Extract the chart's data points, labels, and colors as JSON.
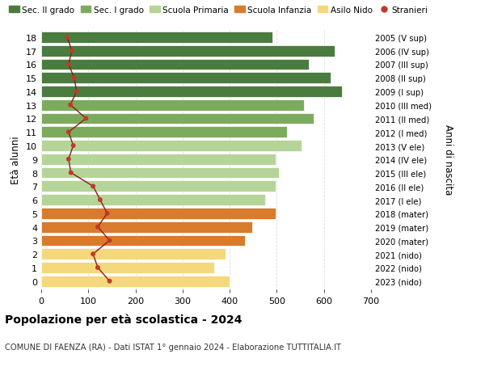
{
  "ages": [
    18,
    17,
    16,
    15,
    14,
    13,
    12,
    11,
    10,
    9,
    8,
    7,
    6,
    5,
    4,
    3,
    2,
    1,
    0
  ],
  "right_labels": [
    "2005 (V sup)",
    "2006 (IV sup)",
    "2007 (III sup)",
    "2008 (II sup)",
    "2009 (I sup)",
    "2010 (III med)",
    "2011 (II med)",
    "2012 (I med)",
    "2013 (V ele)",
    "2014 (IV ele)",
    "2015 (III ele)",
    "2016 (II ele)",
    "2017 (I ele)",
    "2018 (mater)",
    "2019 (mater)",
    "2020 (mater)",
    "2021 (nido)",
    "2022 (nido)",
    "2023 (nido)"
  ],
  "bar_values": [
    490,
    622,
    568,
    615,
    638,
    558,
    578,
    522,
    553,
    498,
    505,
    498,
    475,
    498,
    448,
    432,
    392,
    368,
    400
  ],
  "stranieri_values": [
    55,
    65,
    58,
    70,
    75,
    62,
    95,
    58,
    68,
    58,
    63,
    110,
    125,
    140,
    120,
    145,
    110,
    120,
    145
  ],
  "bar_colors": [
    "#4a7c3f",
    "#4a7c3f",
    "#4a7c3f",
    "#4a7c3f",
    "#4a7c3f",
    "#7dab5e",
    "#7dab5e",
    "#7dab5e",
    "#b5d498",
    "#b5d498",
    "#b5d498",
    "#b5d498",
    "#b5d498",
    "#d97b2c",
    "#d97b2c",
    "#d97b2c",
    "#f5d87c",
    "#f5d87c",
    "#f5d87c"
  ],
  "legend_labels": [
    "Sec. II grado",
    "Sec. I grado",
    "Scuola Primaria",
    "Scuola Infanzia",
    "Asilo Nido",
    "Stranieri"
  ],
  "legend_colors": [
    "#4a7c3f",
    "#7dab5e",
    "#b5d498",
    "#d97b2c",
    "#f5d87c",
    "#c0392b"
  ],
  "title": "Popolazione per età scolastica - 2024",
  "subtitle": "COMUNE DI FAENZA (RA) - Dati ISTAT 1° gennaio 2024 - Elaborazione TUTTITALIA.IT",
  "ylabel": "Età alunni",
  "right_ylabel": "Anni di nascita",
  "xlim": [
    0,
    700
  ],
  "xticks": [
    0,
    100,
    200,
    300,
    400,
    500,
    600,
    700
  ],
  "bg_color": "#ffffff",
  "grid_color": "#dddddd",
  "stranieri_color": "#c0392b",
  "stranieri_line_color": "#8b1a1a",
  "bar_height": 0.82
}
